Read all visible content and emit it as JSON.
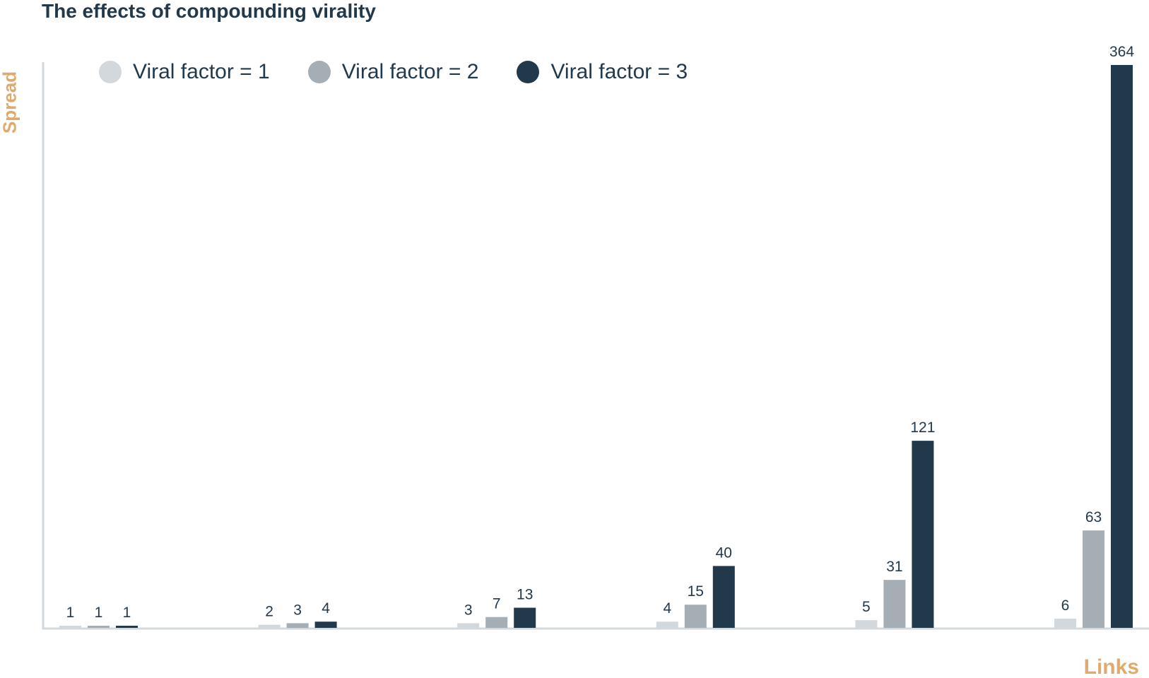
{
  "chart_data": {
    "type": "bar",
    "title": "The effects of compounding virality",
    "xlabel": "Links",
    "ylabel": "Spread",
    "categories": [
      "",
      "",
      "",
      "",
      "",
      ""
    ],
    "series": [
      {
        "name": "Viral factor = 1",
        "color": "#d3d8dc",
        "values": [
          1,
          2,
          3,
          4,
          5,
          6
        ]
      },
      {
        "name": "Viral factor = 2",
        "color": "#a5aeb4",
        "values": [
          1,
          3,
          7,
          15,
          31,
          63
        ]
      },
      {
        "name": "Viral factor = 3",
        "color": "#22384b",
        "values": [
          1,
          4,
          13,
          40,
          121,
          364
        ]
      }
    ],
    "ylim": [
      0,
      364
    ],
    "grid": false,
    "legend": "top-left",
    "data_labels": true,
    "axis_color": "#d3d8dc",
    "label_color": "#deaa6d",
    "text_color": "#22384b"
  }
}
